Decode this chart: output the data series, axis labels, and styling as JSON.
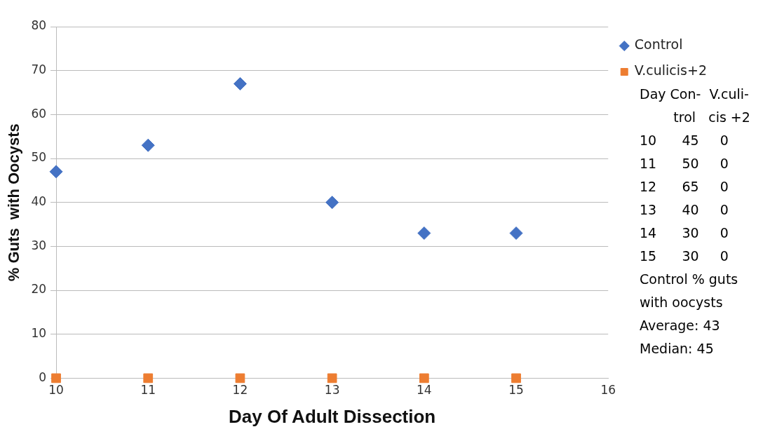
{
  "chart_data": {
    "type": "scatter",
    "xlabel": "Day Of Adult Dissection",
    "ylabel": "% Guts  with Oocysts",
    "x": [
      10,
      11,
      12,
      13,
      14,
      15
    ],
    "series": [
      {
        "name": "Control",
        "color": "#4472c4",
        "marker": "diamond",
        "values": [
          47,
          53,
          67,
          40,
          33,
          33
        ]
      },
      {
        "name": "V.culicis+2",
        "color": "#ed7d31",
        "marker": "square",
        "values": [
          0,
          0,
          0,
          0,
          0,
          0
        ]
      }
    ],
    "xlim": [
      10,
      16
    ],
    "xticks": [
      10,
      11,
      12,
      13,
      14,
      15,
      16
    ],
    "ylim": [
      0,
      80
    ],
    "yticks": [
      0,
      10,
      20,
      30,
      40,
      50,
      60,
      70,
      80
    ],
    "grid": "y",
    "legend": "top right",
    "annotations": [
      "Day Con-  V.culi-",
      "        trol   cis +2",
      "10      45     0",
      "11      50     0",
      "12      65     0",
      "13      40     0",
      "14      30     0",
      "15      30     0",
      "Control % guts",
      "with oocysts",
      "Average: 43",
      "Median: 45"
    ]
  }
}
